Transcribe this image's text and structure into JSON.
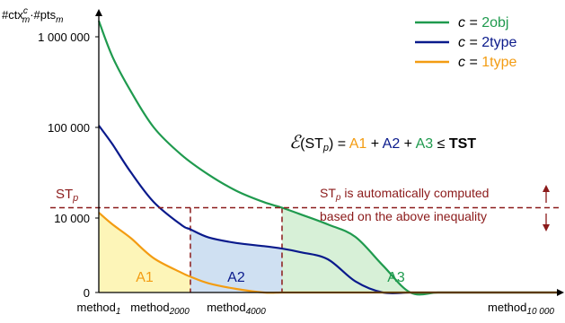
{
  "chart_data": {
    "type": "line",
    "y_scale": "log",
    "ylabel_parts": {
      "a": "#ctx",
      "a_sup": "c",
      "a_sub": "m",
      "sep": "·#pts",
      "b_sub": "m"
    },
    "y_ticks": [
      {
        "value": 1000000,
        "label": "1 000 000"
      },
      {
        "value": 100000,
        "label": "100 000"
      },
      {
        "value": 10000,
        "label": "10 000"
      },
      {
        "value": 0,
        "label": "0"
      }
    ],
    "x_ticks": [
      {
        "value": 1,
        "base": "method",
        "sub": "1"
      },
      {
        "value": 2000,
        "base": "method",
        "sub": "2000"
      },
      {
        "value": 4000,
        "base": "method",
        "sub": "4000"
      },
      {
        "value": 10000,
        "base": "method",
        "sub": "10 000"
      }
    ],
    "series": [
      {
        "name": "2obj",
        "color": "#1f9a4e",
        "x": [
          1,
          300,
          700,
          1200,
          1800,
          2400,
          3000,
          3600,
          4000,
          4400,
          5000,
          5600,
          6200,
          6800,
          7400,
          8000,
          8600,
          9200,
          9700,
          10000
        ],
        "y": [
          1500000,
          600000,
          250000,
          100000,
          50000,
          30000,
          20000,
          15000,
          13000,
          11000,
          8500,
          6200,
          3000,
          1200,
          500,
          280,
          200,
          130,
          80,
          10
        ]
      },
      {
        "name": "2type",
        "color": "#0a1a8c",
        "x": [
          1,
          300,
          700,
          1200,
          1800,
          2000,
          2400,
          3000,
          3600,
          4000,
          4400,
          5000,
          5600,
          6200,
          6800,
          7400,
          8000,
          8600,
          9200,
          9700,
          10000
        ],
        "y": [
          105000,
          65000,
          32000,
          15000,
          8400,
          7500,
          6100,
          5300,
          4900,
          4600,
          4200,
          3500,
          2000,
          900,
          420,
          260,
          190,
          140,
          100,
          60,
          10
        ]
      },
      {
        "name": "1type",
        "color": "#f39c12",
        "x": [
          1,
          300,
          700,
          1200,
          1800,
          2000,
          2400,
          3000,
          3600,
          4000,
          4400,
          5000,
          5600,
          6200,
          6800,
          7400,
          8000,
          8600,
          9200,
          9700,
          10000
        ],
        "y": [
          11500,
          8500,
          6000,
          3600,
          2500,
          2250,
          1900,
          1650,
          1450,
          1300,
          1120,
          800,
          450,
          250,
          170,
          130,
          105,
          80,
          55,
          35,
          10
        ]
      }
    ],
    "threshold": {
      "label_base": "ST",
      "label_sub": "p",
      "value": 13000,
      "color": "#8b1a1a"
    },
    "areas": [
      {
        "label": "A1",
        "series": "1type",
        "x_range": [
          1,
          2000
        ],
        "fill": "#fdf5b8",
        "text_color": "#f39c12"
      },
      {
        "label": "A2",
        "series": "2type",
        "x_range": [
          2000,
          4000
        ],
        "fill": "#cfe0f2",
        "text_color": "#0a1a8c"
      },
      {
        "label": "A3",
        "series": "2obj",
        "x_range": [
          4000,
          10000
        ],
        "fill": "#d7f0d7",
        "text_color": "#1f9a4e"
      }
    ],
    "legend": {
      "placement": "top-right",
      "prefix": "c",
      "entries": [
        {
          "label": "2obj",
          "color": "#1f9a4e"
        },
        {
          "label": "2type",
          "color": "#0a1a8c"
        },
        {
          "label": "1type",
          "color": "#f39c12"
        }
      ]
    },
    "equation": {
      "lhs_symbol": "ℰ",
      "lhs_arg_base": "ST",
      "lhs_arg_sub": "p",
      "eq": "=",
      "terms": [
        {
          "text": "A1",
          "color": "#f39c12"
        },
        {
          "text": "A2",
          "color": "#0a1a8c"
        },
        {
          "text": "A3",
          "color": "#1f9a4e"
        }
      ],
      "plus": "+",
      "leq": "≤",
      "rhs": "TST"
    },
    "annotation": {
      "line1_base": "ST",
      "line1_sub": "p",
      "line1_rest": " is automatically computed",
      "line2": "based on the above inequality",
      "color": "#8b1a1a"
    }
  }
}
